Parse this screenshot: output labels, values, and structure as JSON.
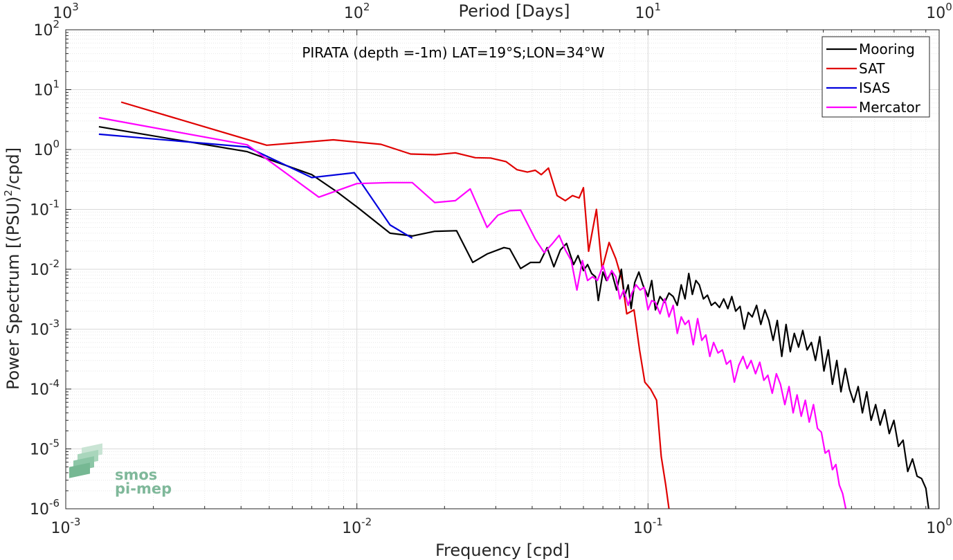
{
  "chart_data": {
    "type": "line",
    "title": "PIRATA (depth =-1m) LAT=19°S;LON=34°W",
    "xlabel": "Frequency [cpd]",
    "ylabel": "Power Spectrum [(PSU)²/cpd]",
    "ylabel_parts": {
      "before": "Power Spectrum [(PSU)",
      "sup": "2",
      "after": "/cpd]"
    },
    "top_xlabel": "Period [Days]",
    "xscale": "log",
    "yscale": "log",
    "xlim": [
      0.001,
      1
    ],
    "ylim": [
      1e-06,
      100
    ],
    "grid": true,
    "legend_position": "top-right",
    "x_ticks": [
      {
        "value": 0.001,
        "base": "10",
        "exp": "-3"
      },
      {
        "value": 0.01,
        "base": "10",
        "exp": "-2"
      },
      {
        "value": 0.1,
        "base": "10",
        "exp": "-1"
      },
      {
        "value": 1,
        "base": "10",
        "exp": "0"
      }
    ],
    "top_ticks": [
      {
        "freq": 0.001,
        "base": "10",
        "exp": "3"
      },
      {
        "freq": 0.01,
        "base": "10",
        "exp": "2"
      },
      {
        "freq": 0.1,
        "base": "10",
        "exp": "1"
      },
      {
        "freq": 1,
        "base": "10",
        "exp": "0"
      }
    ],
    "y_ticks": [
      {
        "value": 100,
        "base": "10",
        "exp": "2"
      },
      {
        "value": 10,
        "base": "10",
        "exp": "1"
      },
      {
        "value": 1,
        "base": "10",
        "exp": "0"
      },
      {
        "value": 0.1,
        "base": "10",
        "exp": "-1"
      },
      {
        "value": 0.01,
        "base": "10",
        "exp": "-2"
      },
      {
        "value": 0.001,
        "base": "10",
        "exp": "-3"
      },
      {
        "value": 0.0001,
        "base": "10",
        "exp": "-4"
      },
      {
        "value": 1e-05,
        "base": "10",
        "exp": "-5"
      },
      {
        "value": 1e-06,
        "base": "10",
        "exp": "-6"
      }
    ],
    "series": [
      {
        "name": "Mooring",
        "color": "#000000",
        "points": [
          [
            0.0013,
            2.4
          ],
          [
            0.0042,
            0.92
          ],
          [
            0.007,
            0.38
          ],
          [
            0.0085,
            0.2
          ],
          [
            0.01,
            0.11
          ],
          [
            0.013,
            0.04
          ],
          [
            0.0155,
            0.036
          ],
          [
            0.0185,
            0.043
          ],
          [
            0.022,
            0.044
          ],
          [
            0.025,
            0.013
          ],
          [
            0.028,
            0.018
          ],
          [
            0.032,
            0.023
          ],
          [
            0.0335,
            0.022
          ],
          [
            0.0365,
            0.0103
          ],
          [
            0.0395,
            0.013
          ],
          [
            0.0425,
            0.013
          ],
          [
            0.045,
            0.023
          ],
          [
            0.0475,
            0.011
          ],
          [
            0.05,
            0.021
          ],
          [
            0.0525,
            0.027
          ],
          [
            0.0555,
            0.012
          ],
          [
            0.0575,
            0.017
          ],
          [
            0.06,
            0.0095
          ],
          [
            0.062,
            0.012
          ],
          [
            0.064,
            0.0085
          ],
          [
            0.066,
            0.0075
          ],
          [
            0.0675,
            0.003
          ],
          [
            0.07,
            0.009
          ],
          [
            0.072,
            0.0065
          ],
          [
            0.075,
            0.009
          ],
          [
            0.078,
            0.0045
          ],
          [
            0.081,
            0.01
          ],
          [
            0.083,
            0.0035
          ],
          [
            0.0855,
            0.0055
          ],
          [
            0.0875,
            0.0022
          ],
          [
            0.09,
            0.006
          ],
          [
            0.093,
            0.009
          ],
          [
            0.096,
            0.0055
          ],
          [
            0.1,
            0.0035
          ],
          [
            0.103,
            0.0065
          ],
          [
            0.106,
            0.0021
          ],
          [
            0.11,
            0.0035
          ],
          [
            0.114,
            0.0028
          ],
          [
            0.118,
            0.004
          ],
          [
            0.122,
            0.0035
          ],
          [
            0.126,
            0.0025
          ],
          [
            0.13,
            0.0055
          ],
          [
            0.134,
            0.0032
          ],
          [
            0.138,
            0.0085
          ],
          [
            0.142,
            0.0038
          ],
          [
            0.146,
            0.0065
          ],
          [
            0.15,
            0.0055
          ],
          [
            0.155,
            0.0032
          ],
          [
            0.16,
            0.0037
          ],
          [
            0.165,
            0.0025
          ],
          [
            0.17,
            0.0028
          ],
          [
            0.176,
            0.0023
          ],
          [
            0.182,
            0.0032
          ],
          [
            0.188,
            0.0022
          ],
          [
            0.194,
            0.0035
          ],
          [
            0.2,
            0.002
          ],
          [
            0.207,
            0.0024
          ],
          [
            0.214,
            0.001
          ],
          [
            0.221,
            0.0019
          ],
          [
            0.228,
            0.0016
          ],
          [
            0.236,
            0.0025
          ],
          [
            0.244,
            0.0012
          ],
          [
            0.252,
            0.0021
          ],
          [
            0.26,
            0.0014
          ],
          [
            0.269,
            0.00065
          ],
          [
            0.278,
            0.0014
          ],
          [
            0.288,
            0.00035
          ],
          [
            0.298,
            0.0012
          ],
          [
            0.308,
            0.00042
          ],
          [
            0.318,
            0.00085
          ],
          [
            0.329,
            0.0005
          ],
          [
            0.34,
            0.00095
          ],
          [
            0.352,
            0.00045
          ],
          [
            0.364,
            0.0006
          ],
          [
            0.376,
            0.0003
          ],
          [
            0.389,
            0.00075
          ],
          [
            0.402,
            0.0002
          ],
          [
            0.416,
            0.00045
          ],
          [
            0.43,
            0.00012
          ],
          [
            0.445,
            0.0003
          ],
          [
            0.46,
            9e-05
          ],
          [
            0.476,
            0.00022
          ],
          [
            0.492,
            0.0001
          ],
          [
            0.509,
            6e-05
          ],
          [
            0.527,
            0.00011
          ],
          [
            0.545,
            4e-05
          ],
          [
            0.564,
            9e-05
          ],
          [
            0.584,
            3e-05
          ],
          [
            0.605,
            5.5e-05
          ],
          [
            0.627,
            2.5e-05
          ],
          [
            0.65,
            4.5e-05
          ],
          [
            0.674,
            1.8e-05
          ],
          [
            0.699,
            3e-05
          ],
          [
            0.725,
            1.1e-05
          ],
          [
            0.752,
            1.4e-05
          ],
          [
            0.78,
            4.2e-06
          ],
          [
            0.81,
            6.8e-06
          ],
          [
            0.84,
            3.5e-06
          ],
          [
            0.87,
            3.2e-06
          ],
          [
            0.9,
            2.2e-06
          ],
          [
            0.92,
            1e-06
          ]
        ]
      },
      {
        "name": "SAT",
        "color": "#e00000",
        "points": [
          [
            0.00155,
            6.2
          ],
          [
            0.0049,
            1.18
          ],
          [
            0.0083,
            1.45
          ],
          [
            0.0121,
            1.22
          ],
          [
            0.0153,
            0.84
          ],
          [
            0.0186,
            0.82
          ],
          [
            0.0218,
            0.88
          ],
          [
            0.0255,
            0.73
          ],
          [
            0.0288,
            0.72
          ],
          [
            0.0325,
            0.63
          ],
          [
            0.0355,
            0.46
          ],
          [
            0.0385,
            0.42
          ],
          [
            0.041,
            0.45
          ],
          [
            0.043,
            0.38
          ],
          [
            0.0455,
            0.49
          ],
          [
            0.0487,
            0.17
          ],
          [
            0.052,
            0.14
          ],
          [
            0.055,
            0.17
          ],
          [
            0.058,
            0.155
          ],
          [
            0.06,
            0.23
          ],
          [
            0.0625,
            0.02
          ],
          [
            0.0665,
            0.1
          ],
          [
            0.0695,
            0.01
          ],
          [
            0.0735,
            0.028
          ],
          [
            0.0775,
            0.015
          ],
          [
            0.0815,
            0.0065
          ],
          [
            0.0845,
            0.0018
          ],
          [
            0.0895,
            0.0021
          ],
          [
            0.0935,
            0.00045
          ],
          [
            0.0975,
            0.00013
          ],
          [
            0.102,
            0.0001
          ],
          [
            0.107,
            6.5e-05
          ],
          [
            0.111,
            7.5e-06
          ],
          [
            0.115,
            2.5e-06
          ],
          [
            0.118,
            1e-06
          ]
        ]
      },
      {
        "name": "ISAS",
        "color": "#0000dd",
        "points": [
          [
            0.0013,
            1.8
          ],
          [
            0.0042,
            1.1
          ],
          [
            0.007,
            0.34
          ],
          [
            0.0098,
            0.41
          ],
          [
            0.013,
            0.055
          ],
          [
            0.0155,
            0.033
          ]
        ]
      },
      {
        "name": "Mercator",
        "color": "#ff00ff",
        "points": [
          [
            0.0013,
            3.4
          ],
          [
            0.0042,
            1.2
          ],
          [
            0.0074,
            0.16
          ],
          [
            0.01,
            0.27
          ],
          [
            0.013,
            0.28
          ],
          [
            0.0155,
            0.28
          ],
          [
            0.0185,
            0.13
          ],
          [
            0.0218,
            0.14
          ],
          [
            0.0245,
            0.22
          ],
          [
            0.028,
            0.05
          ],
          [
            0.0305,
            0.08
          ],
          [
            0.0335,
            0.095
          ],
          [
            0.0365,
            0.097
          ],
          [
            0.041,
            0.032
          ],
          [
            0.044,
            0.019
          ],
          [
            0.047,
            0.027
          ],
          [
            0.0495,
            0.037
          ],
          [
            0.052,
            0.021
          ],
          [
            0.0545,
            0.014
          ],
          [
            0.057,
            0.0045
          ],
          [
            0.0595,
            0.014
          ],
          [
            0.062,
            0.0065
          ],
          [
            0.0645,
            0.0075
          ],
          [
            0.067,
            0.0065
          ],
          [
            0.07,
            0.0115
          ],
          [
            0.0725,
            0.0065
          ],
          [
            0.075,
            0.0095
          ],
          [
            0.0775,
            0.0075
          ],
          [
            0.08,
            0.0032
          ],
          [
            0.0825,
            0.0045
          ],
          [
            0.0855,
            0.0025
          ],
          [
            0.088,
            0.004
          ],
          [
            0.091,
            0.0055
          ],
          [
            0.094,
            0.0045
          ],
          [
            0.097,
            0.005
          ],
          [
            0.1,
            0.0021
          ],
          [
            0.103,
            0.003
          ],
          [
            0.106,
            0.0028
          ],
          [
            0.11,
            0.0018
          ],
          [
            0.114,
            0.0032
          ],
          [
            0.118,
            0.0016
          ],
          [
            0.122,
            0.0025
          ],
          [
            0.126,
            0.00085
          ],
          [
            0.13,
            0.0016
          ],
          [
            0.134,
            0.0012
          ],
          [
            0.138,
            0.0014
          ],
          [
            0.143,
            0.00055
          ],
          [
            0.148,
            0.0015
          ],
          [
            0.153,
            0.00065
          ],
          [
            0.158,
            0.0008
          ],
          [
            0.163,
            0.00035
          ],
          [
            0.168,
            0.0006
          ],
          [
            0.174,
            0.0004
          ],
          [
            0.18,
            0.00045
          ],
          [
            0.186,
            0.00026
          ],
          [
            0.192,
            0.0003
          ],
          [
            0.198,
            0.00013
          ],
          [
            0.205,
            0.00025
          ],
          [
            0.212,
            0.00035
          ],
          [
            0.219,
            0.00022
          ],
          [
            0.226,
            0.0003
          ],
          [
            0.234,
            0.00018
          ],
          [
            0.242,
            0.00028
          ],
          [
            0.25,
            0.00014
          ],
          [
            0.258,
            0.00017
          ],
          [
            0.267,
            8.5e-05
          ],
          [
            0.276,
            0.00018
          ],
          [
            0.285,
            0.00012
          ],
          [
            0.295,
            5.5e-05
          ],
          [
            0.305,
            0.00011
          ],
          [
            0.315,
            4e-05
          ],
          [
            0.325,
            8e-05
          ],
          [
            0.336,
            3.5e-05
          ],
          [
            0.347,
            6.5e-05
          ],
          [
            0.358,
            2.8e-05
          ],
          [
            0.37,
            5.5e-05
          ],
          [
            0.382,
            2.2e-05
          ],
          [
            0.394,
            1.9e-05
          ],
          [
            0.406,
            8.5e-06
          ],
          [
            0.418,
            9.5e-06
          ],
          [
            0.43,
            4.5e-06
          ],
          [
            0.442,
            5.5e-06
          ],
          [
            0.454,
            2.5e-06
          ],
          [
            0.466,
            1.8e-06
          ],
          [
            0.478,
            1e-06
          ]
        ]
      }
    ]
  },
  "logo": {
    "line1": "smos",
    "line2": "pi-mep"
  }
}
